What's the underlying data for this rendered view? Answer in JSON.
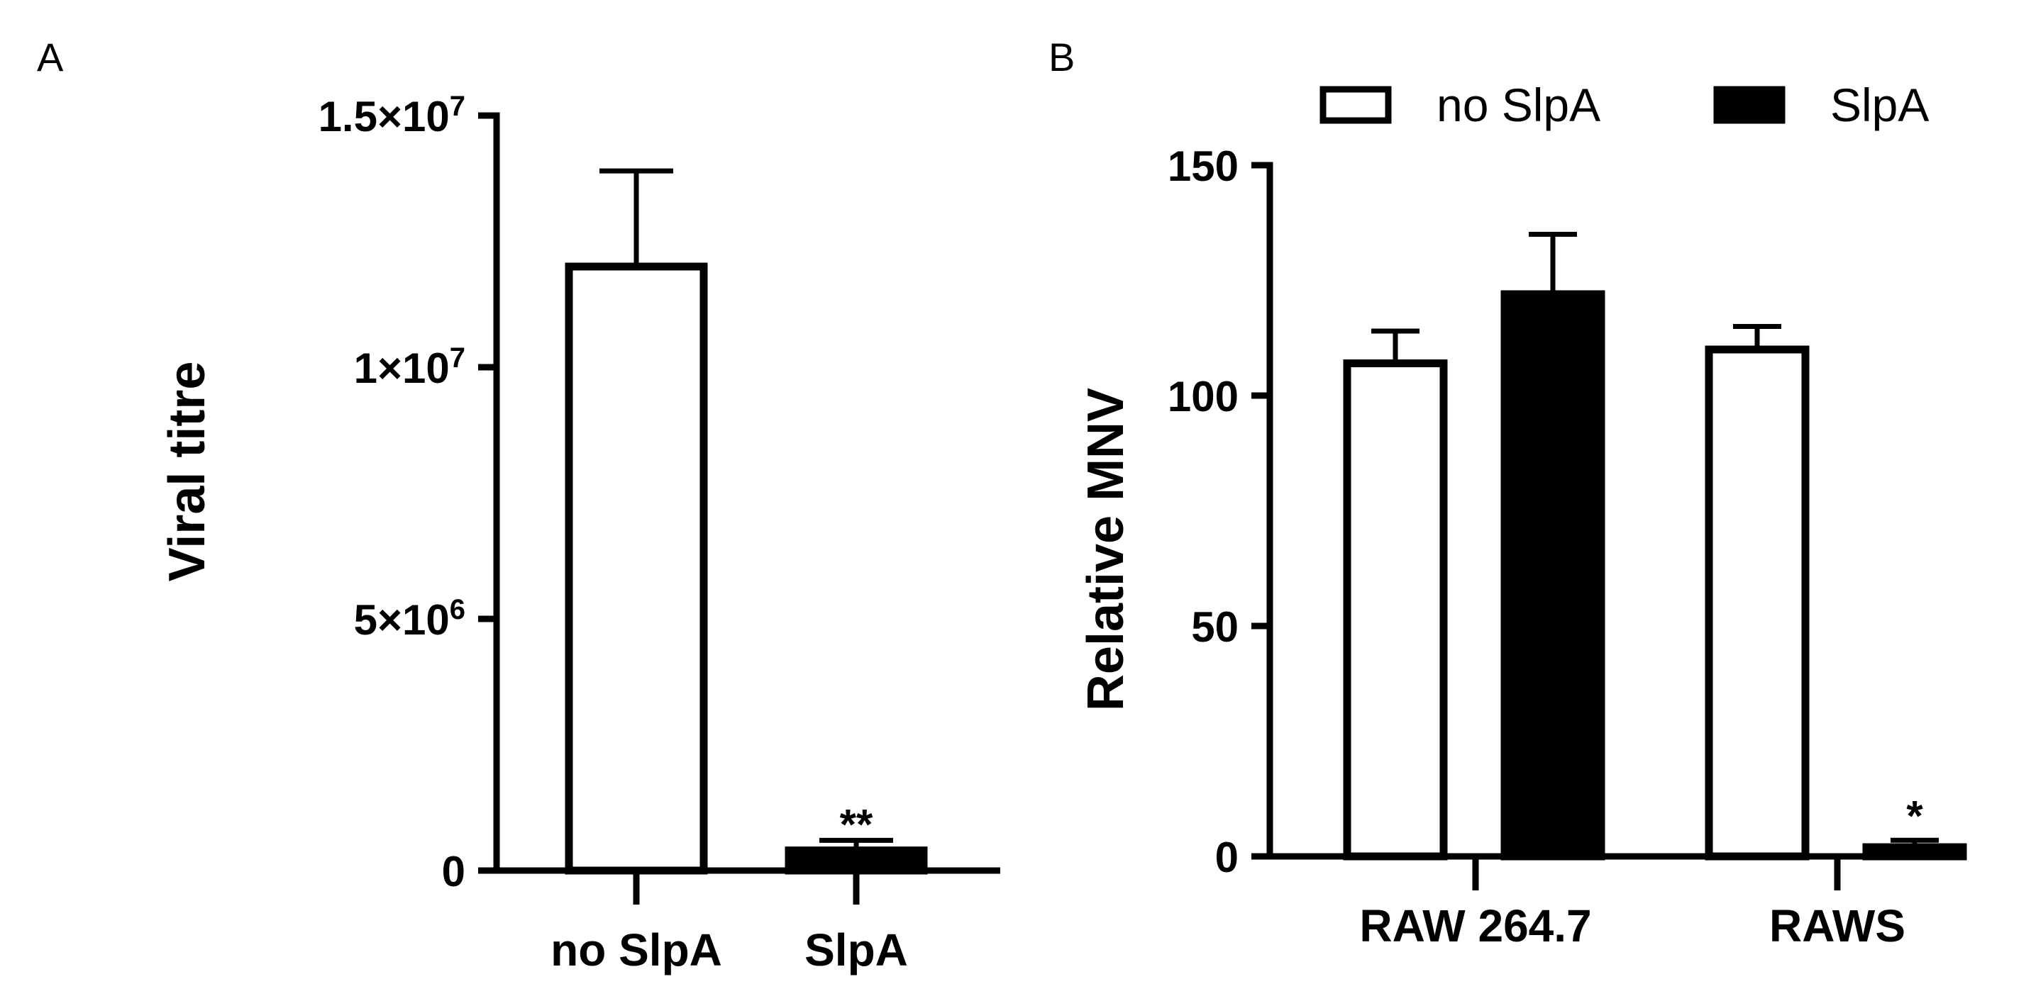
{
  "colors": {
    "ink": "#000000",
    "open_fill": "#ffffff",
    "solid_fill": "#000000"
  },
  "chart_data": [
    {
      "type": "bar",
      "panel_label": "A",
      "title": "",
      "xlabel": "",
      "ylabel": "Viral titre",
      "ylim": [
        0,
        15000000
      ],
      "y_ticks": [
        {
          "value": 0,
          "base": "0",
          "exp": ""
        },
        {
          "value": 5000000,
          "base": "5×10",
          "exp": "6"
        },
        {
          "value": 10000000,
          "base": "1×10",
          "exp": "7"
        },
        {
          "value": 15000000,
          "base": "1.5×10",
          "exp": "7"
        }
      ],
      "categories": [
        "no SlpA",
        "SlpA"
      ],
      "values": [
        12000000,
        400000
      ],
      "errors": [
        1900000,
        200000
      ],
      "fills": [
        "open",
        "solid"
      ],
      "annotations": [
        {
          "category": "SlpA",
          "text": "**"
        }
      ]
    },
    {
      "type": "bar",
      "panel_label": "B",
      "title": "",
      "xlabel": "",
      "ylabel": "Relative MNV",
      "ylim": [
        0,
        150
      ],
      "y_ticks": [
        0,
        50,
        100,
        150
      ],
      "legend_position": "top",
      "categories": [
        "RAW 264.7",
        "RAWS"
      ],
      "series": [
        {
          "name": "no SlpA",
          "fill": "open",
          "values": [
            107,
            110
          ],
          "errors": [
            7,
            5
          ]
        },
        {
          "name": "SlpA",
          "fill": "solid",
          "values": [
            122,
            2
          ],
          "errors": [
            13,
            1.5
          ]
        }
      ],
      "annotations": [
        {
          "category": "RAWS",
          "series": "SlpA",
          "text": "*"
        }
      ]
    }
  ]
}
